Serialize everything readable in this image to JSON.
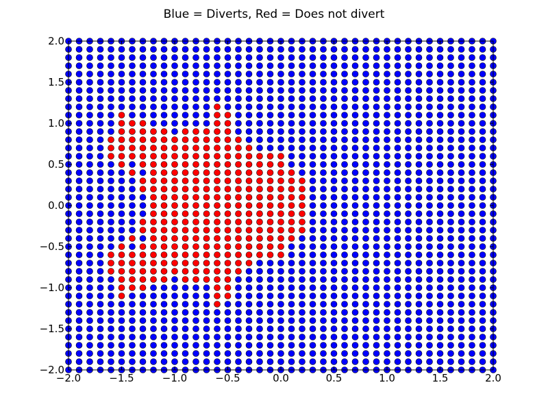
{
  "chart_data": {
    "type": "scatter",
    "title": "Blue = Diverts, Red = Does not divert",
    "xlabel": "",
    "ylabel": "",
    "xlim": [
      -2.0,
      2.0
    ],
    "ylim": [
      -2.0,
      2.0
    ],
    "grid": false,
    "x_ticks": [
      "−2.0",
      "−1.5",
      "−1.0",
      "−0.5",
      "0.0",
      "0.5",
      "1.0",
      "1.5",
      "2.0"
    ],
    "y_ticks": [
      "−2.0",
      "−1.5",
      "−1.0",
      "−0.5",
      "0.0",
      "0.5",
      "1.0",
      "1.5",
      "2.0"
    ],
    "grid_spacing": 0.1,
    "series": [
      {
        "color": "#0000ff",
        "label": "Diverts",
        "rule": "all grid points not listed in the red series"
      },
      {
        "color": "#ff0000",
        "label": "Does not divert",
        "rows": [
          {
            "y": 1.2,
            "x": [
              -0.6
            ]
          },
          {
            "y": 1.1,
            "x": [
              -1.5,
              -0.6,
              -0.5
            ]
          },
          {
            "y": 1.0,
            "x": [
              -1.5,
              -1.4,
              -1.3,
              -0.6,
              -0.5
            ]
          },
          {
            "y": 0.9,
            "x": [
              -1.5,
              -1.4,
              -1.3,
              -1.2,
              -1.1,
              -0.9,
              -0.8,
              -0.7,
              -0.6,
              -0.5
            ]
          },
          {
            "y": 0.8,
            "x": [
              -1.6,
              -1.5,
              -1.4,
              -1.3,
              -1.2,
              -1.1,
              -1.0,
              -0.9,
              -0.8,
              -0.7,
              -0.6,
              -0.5,
              -0.4
            ]
          },
          {
            "y": 0.7,
            "x": [
              -1.6,
              -1.5,
              -1.4,
              -1.3,
              -1.2,
              -1.1,
              -1.0,
              -0.9,
              -0.8,
              -0.7,
              -0.6,
              -0.5,
              -0.4,
              -0.3
            ]
          },
          {
            "y": 0.6,
            "x": [
              -1.6,
              -1.5,
              -1.4,
              -1.3,
              -1.2,
              -1.1,
              -1.0,
              -0.9,
              -0.8,
              -0.7,
              -0.6,
              -0.5,
              -0.4,
              -0.3,
              -0.2,
              -0.1,
              0.0
            ]
          },
          {
            "y": 0.5,
            "x": [
              -1.5,
              -1.3,
              -1.2,
              -1.1,
              -1.0,
              -0.9,
              -0.8,
              -0.7,
              -0.6,
              -0.5,
              -0.4,
              -0.3,
              -0.2,
              -0.1,
              0.0
            ]
          },
          {
            "y": 0.4,
            "x": [
              -1.4,
              -1.2,
              -1.1,
              -1.0,
              -0.9,
              -0.8,
              -0.7,
              -0.6,
              -0.5,
              -0.4,
              -0.3,
              -0.2,
              -0.1,
              0.0,
              0.1
            ]
          },
          {
            "y": 0.3,
            "x": [
              -1.3,
              -1.2,
              -1.1,
              -1.0,
              -0.9,
              -0.8,
              -0.7,
              -0.6,
              -0.5,
              -0.4,
              -0.3,
              -0.2,
              -0.1,
              0.0,
              0.1,
              0.2
            ]
          },
          {
            "y": 0.2,
            "x": [
              -1.3,
              -1.2,
              -1.1,
              -1.0,
              -0.9,
              -0.8,
              -0.7,
              -0.6,
              -0.5,
              -0.4,
              -0.3,
              -0.2,
              -0.1,
              0.0,
              0.1,
              0.2
            ]
          },
          {
            "y": 0.1,
            "x": [
              -1.2,
              -1.1,
              -1.0,
              -0.9,
              -0.8,
              -0.7,
              -0.6,
              -0.5,
              -0.4,
              -0.3,
              -0.2,
              -0.1,
              0.0,
              0.1,
              0.2
            ]
          },
          {
            "y": 0.0,
            "x": [
              -1.2,
              -1.1,
              -1.0,
              -0.9,
              -0.8,
              -0.7,
              -0.6,
              -0.5,
              -0.4,
              -0.3,
              -0.2,
              -0.1,
              0.0,
              0.1,
              0.2
            ]
          },
          {
            "y": -0.1,
            "x": [
              -1.2,
              -1.1,
              -1.0,
              -0.9,
              -0.8,
              -0.7,
              -0.6,
              -0.5,
              -0.4,
              -0.3,
              -0.2,
              -0.1,
              0.0,
              0.1,
              0.2
            ]
          },
          {
            "y": -0.2,
            "x": [
              -1.3,
              -1.2,
              -1.1,
              -1.0,
              -0.9,
              -0.8,
              -0.7,
              -0.6,
              -0.5,
              -0.4,
              -0.3,
              -0.2,
              -0.1,
              0.0,
              0.1,
              0.2
            ]
          },
          {
            "y": -0.3,
            "x": [
              -1.3,
              -1.2,
              -1.1,
              -1.0,
              -0.9,
              -0.8,
              -0.7,
              -0.6,
              -0.5,
              -0.4,
              -0.3,
              -0.2,
              -0.1,
              0.0,
              0.1,
              0.2
            ]
          },
          {
            "y": -0.4,
            "x": [
              -1.4,
              -1.2,
              -1.1,
              -1.0,
              -0.9,
              -0.8,
              -0.7,
              -0.6,
              -0.5,
              -0.4,
              -0.3,
              -0.2,
              -0.1,
              0.0,
              0.1
            ]
          },
          {
            "y": -0.5,
            "x": [
              -1.5,
              -1.3,
              -1.2,
              -1.1,
              -1.0,
              -0.9,
              -0.8,
              -0.7,
              -0.6,
              -0.5,
              -0.4,
              -0.3,
              -0.2,
              -0.1,
              0.0
            ]
          },
          {
            "y": -0.6,
            "x": [
              -1.6,
              -1.5,
              -1.4,
              -1.3,
              -1.2,
              -1.1,
              -1.0,
              -0.9,
              -0.8,
              -0.7,
              -0.6,
              -0.5,
              -0.4,
              -0.3,
              -0.2,
              -0.1,
              0.0
            ]
          },
          {
            "y": -0.7,
            "x": [
              -1.6,
              -1.5,
              -1.4,
              -1.3,
              -1.2,
              -1.1,
              -1.0,
              -0.9,
              -0.8,
              -0.7,
              -0.6,
              -0.5,
              -0.4,
              -0.3
            ]
          },
          {
            "y": -0.8,
            "x": [
              -1.6,
              -1.5,
              -1.4,
              -1.3,
              -1.2,
              -1.1,
              -1.0,
              -0.9,
              -0.8,
              -0.7,
              -0.6,
              -0.5,
              -0.4
            ]
          },
          {
            "y": -0.9,
            "x": [
              -1.5,
              -1.4,
              -1.3,
              -1.2,
              -1.1,
              -0.9,
              -0.8,
              -0.7,
              -0.6,
              -0.5
            ]
          },
          {
            "y": -1.0,
            "x": [
              -1.5,
              -1.4,
              -1.3,
              -0.6,
              -0.5
            ]
          },
          {
            "y": -1.1,
            "x": [
              -1.5,
              -0.6,
              -0.5
            ]
          },
          {
            "y": -1.2,
            "x": [
              -0.6
            ]
          }
        ]
      }
    ]
  }
}
